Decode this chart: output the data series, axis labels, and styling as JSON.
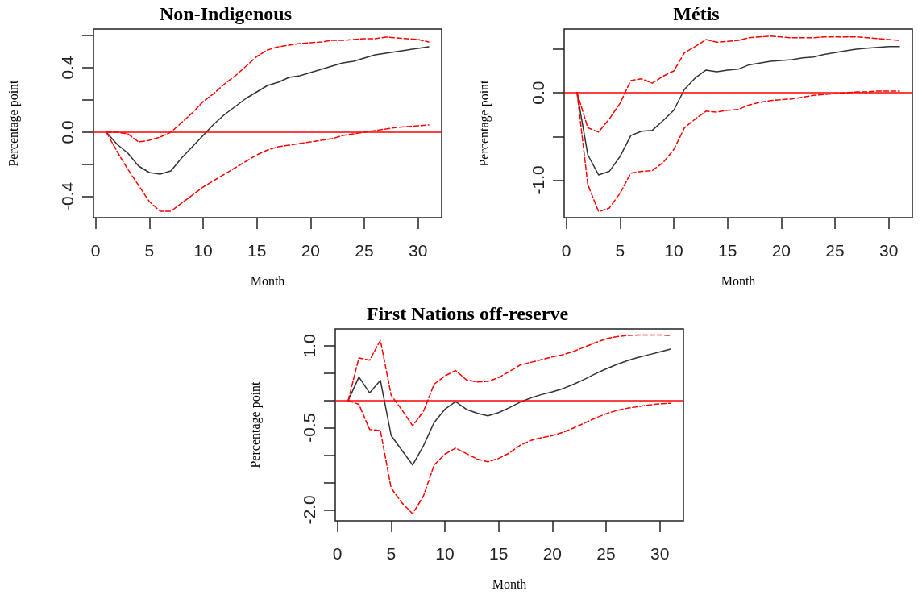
{
  "chart_data": [
    {
      "type": "line",
      "title": "Non-Indigenous",
      "xlabel": "Month",
      "ylabel": "Percentage point",
      "x": [
        1,
        2,
        3,
        4,
        5,
        6,
        7,
        8,
        9,
        10,
        11,
        12,
        13,
        14,
        15,
        16,
        17,
        18,
        19,
        20,
        21,
        22,
        23,
        24,
        25,
        26,
        27,
        28,
        29,
        30,
        31
      ],
      "xlim": [
        -0.2,
        32.2
      ],
      "xticks": [
        0,
        5,
        10,
        15,
        20,
        25,
        30
      ],
      "ylim": [
        -0.53,
        0.64
      ],
      "yticks": [
        {
          "value": -0.4,
          "label": "-0.4"
        },
        {
          "value": -0.2,
          "label": null
        },
        {
          "value": 0,
          "label": "0.0"
        },
        {
          "value": 0.2,
          "label": null
        },
        {
          "value": 0.4,
          "label": "0.4"
        },
        {
          "value": 0.6,
          "label": null
        }
      ],
      "ref_lines": [
        {
          "axis": "y",
          "value": 0,
          "label": null,
          "color": "#ff0000"
        }
      ],
      "series": [
        {
          "color": "#333333",
          "line_style": "solid",
          "values": [
            0,
            -0.075,
            -0.13,
            -0.21,
            -0.25,
            -0.26,
            -0.24,
            -0.16,
            -0.09,
            -0.02,
            0.05,
            0.11,
            0.16,
            0.21,
            0.25,
            0.29,
            0.31,
            0.34,
            0.35,
            0.37,
            0.39,
            0.41,
            0.43,
            0.44,
            0.46,
            0.48,
            0.49,
            0.5,
            0.51,
            0.52,
            0.53
          ]
        },
        {
          "color": "#ff0000",
          "line_style": "dashed",
          "values": [
            0,
            0,
            -0.01,
            -0.06,
            -0.05,
            -0.03,
            0,
            0.06,
            0.12,
            0.19,
            0.24,
            0.3,
            0.35,
            0.41,
            0.47,
            0.51,
            0.53,
            0.54,
            0.55,
            0.555,
            0.56,
            0.57,
            0.57,
            0.575,
            0.58,
            0.58,
            0.59,
            0.585,
            0.58,
            0.575,
            0.56
          ]
        },
        {
          "color": "#ff0000",
          "line_style": "dashed",
          "values": [
            0,
            -0.12,
            -0.23,
            -0.33,
            -0.43,
            -0.49,
            -0.49,
            -0.44,
            -0.39,
            -0.34,
            -0.3,
            -0.26,
            -0.22,
            -0.18,
            -0.14,
            -0.11,
            -0.09,
            -0.08,
            -0.07,
            -0.06,
            -0.05,
            -0.04,
            -0.02,
            -0.01,
            0,
            0.01,
            0.02,
            0.03,
            0.035,
            0.04,
            0.045
          ]
        }
      ]
    },
    {
      "type": "line",
      "title": "Métis",
      "xlabel": "Month",
      "ylabel": "Percentage point",
      "x": [
        1,
        2,
        3,
        4,
        5,
        6,
        7,
        8,
        9,
        10,
        11,
        12,
        13,
        14,
        15,
        16,
        17,
        18,
        19,
        20,
        21,
        22,
        23,
        24,
        25,
        26,
        27,
        28,
        29,
        30,
        31
      ],
      "xlim": [
        -0.2,
        32.2
      ],
      "xticks": [
        0,
        5,
        10,
        15,
        20,
        25,
        30
      ],
      "ylim": [
        -1.43,
        0.73
      ],
      "yticks": [
        {
          "value": -1,
          "label": "-1.0"
        },
        {
          "value": -0.5,
          "label": null
        },
        {
          "value": 0,
          "label": "0.0"
        },
        {
          "value": 0.5,
          "label": null
        }
      ],
      "ref_lines": [
        {
          "axis": "y",
          "value": 0,
          "label": null,
          "color": "#ff0000"
        }
      ],
      "series": [
        {
          "color": "#333333",
          "line_style": "solid",
          "values": [
            0,
            -0.71,
            -0.94,
            -0.9,
            -0.73,
            -0.49,
            -0.44,
            -0.43,
            -0.32,
            -0.2,
            0.04,
            0.17,
            0.26,
            0.24,
            0.26,
            0.27,
            0.32,
            0.34,
            0.36,
            0.37,
            0.38,
            0.4,
            0.41,
            0.44,
            0.46,
            0.48,
            0.5,
            0.51,
            0.52,
            0.53,
            0.53
          ]
        },
        {
          "color": "#ff0000",
          "line_style": "dashed",
          "values": [
            0,
            -0.4,
            -0.45,
            -0.3,
            -0.12,
            0.14,
            0.16,
            0.11,
            0.19,
            0.25,
            0.46,
            0.53,
            0.61,
            0.58,
            0.59,
            0.6,
            0.63,
            0.64,
            0.65,
            0.64,
            0.63,
            0.63,
            0.63,
            0.64,
            0.64,
            0.64,
            0.64,
            0.63,
            0.62,
            0.61,
            0.6
          ]
        },
        {
          "color": "#ff0000",
          "line_style": "dashed",
          "values": [
            0,
            -1.05,
            -1.36,
            -1.32,
            -1.15,
            -0.92,
            -0.9,
            -0.89,
            -0.8,
            -0.65,
            -0.4,
            -0.3,
            -0.21,
            -0.22,
            -0.2,
            -0.19,
            -0.14,
            -0.11,
            -0.09,
            -0.08,
            -0.07,
            -0.05,
            -0.03,
            -0.02,
            -0.01,
            0,
            0.01,
            0.01,
            0.02,
            0.02,
            0.02
          ]
        }
      ]
    },
    {
      "type": "line",
      "title": "First Nations off-reserve",
      "xlabel": "Month",
      "ylabel": "Percentage point",
      "x": [
        1,
        2,
        3,
        4,
        5,
        6,
        7,
        8,
        9,
        10,
        11,
        12,
        13,
        14,
        15,
        16,
        17,
        18,
        19,
        20,
        21,
        22,
        23,
        24,
        25,
        26,
        27,
        28,
        29,
        30,
        31
      ],
      "xlim": [
        -0.2,
        32.2
      ],
      "xticks": [
        0,
        5,
        10,
        15,
        20,
        25,
        30
      ],
      "ylim": [
        -2.2,
        1.31
      ],
      "yticks": [
        {
          "value": -2,
          "label": "-2.0"
        },
        {
          "value": -1.5,
          "label": null
        },
        {
          "value": -1,
          "label": null
        },
        {
          "value": -0.5,
          "label": "-0.5"
        },
        {
          "value": 0,
          "label": null
        },
        {
          "value": 0.5,
          "label": null
        },
        {
          "value": 1,
          "label": "1.0"
        }
      ],
      "ref_lines": [
        {
          "axis": "y",
          "value": 0,
          "label": null,
          "color": "#ff0000"
        }
      ],
      "series": [
        {
          "color": "#333333",
          "line_style": "solid",
          "values": [
            0,
            0.43,
            0.14,
            0.37,
            -0.64,
            -0.91,
            -1.18,
            -0.83,
            -0.4,
            -0.16,
            -0.02,
            -0.16,
            -0.23,
            -0.28,
            -0.22,
            -0.13,
            -0.03,
            0.05,
            0.11,
            0.16,
            0.22,
            0.3,
            0.39,
            0.49,
            0.58,
            0.66,
            0.73,
            0.79,
            0.84,
            0.89,
            0.94
          ]
        },
        {
          "color": "#ff0000",
          "line_style": "dashed",
          "values": [
            0,
            0.78,
            0.74,
            1.1,
            0.1,
            -0.17,
            -0.46,
            -0.2,
            0.3,
            0.45,
            0.55,
            0.38,
            0.34,
            0.35,
            0.42,
            0.53,
            0.65,
            0.7,
            0.75,
            0.8,
            0.84,
            0.9,
            0.98,
            1.06,
            1.13,
            1.17,
            1.19,
            1.2,
            1.2,
            1.2,
            1.19
          ]
        },
        {
          "color": "#ff0000",
          "line_style": "dashed",
          "values": [
            0,
            -0.07,
            -0.53,
            -0.55,
            -1.6,
            -1.87,
            -2.07,
            -1.75,
            -1.18,
            -0.98,
            -0.87,
            -0.97,
            -1.07,
            -1.12,
            -1.06,
            -0.96,
            -0.82,
            -0.73,
            -0.68,
            -0.64,
            -0.58,
            -0.5,
            -0.41,
            -0.32,
            -0.24,
            -0.18,
            -0.14,
            -0.11,
            -0.08,
            -0.06,
            -0.05
          ]
        }
      ]
    }
  ]
}
